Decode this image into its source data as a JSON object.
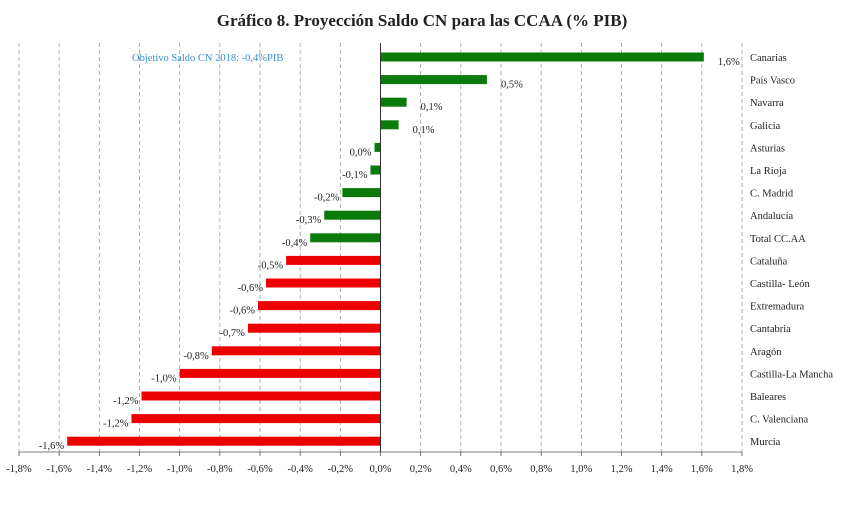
{
  "chart_data": {
    "type": "bar",
    "orientation": "horizontal",
    "title": "Gráfico 8. Proyección Saldo CN para las CCAA (% PIB)",
    "annotation": "Objetivo Saldo CN 2018: -0,4%PIB",
    "categories": [
      "Canarias",
      "País Vasco",
      "Navarra",
      "Galicia",
      "Asturias",
      "La Rioja",
      "C. Madrid",
      "Andalucía",
      "Total CC.AA",
      "Cataluña",
      "Castilla- León",
      "Extremadura",
      "Cantabria",
      "Aragón",
      "Castilla-La Mancha",
      "Baleares",
      "C. Valenciana",
      "Murcia"
    ],
    "values": [
      1.61,
      0.53,
      0.13,
      0.09,
      -0.03,
      -0.05,
      -0.19,
      -0.28,
      -0.35,
      -0.47,
      -0.57,
      -0.61,
      -0.66,
      -0.84,
      -1.0,
      -1.19,
      -1.24,
      -1.56
    ],
    "value_labels": [
      "1,6%",
      "0,5%",
      "0,1%",
      "0,1%",
      "0,0%",
      "-0,1%",
      "-0,2%",
      "-0,3%",
      "-0,4%",
      "-0,5%",
      "-0,6%",
      "-0,6%",
      "-0,7%",
      "-0,8%",
      "-1,0%",
      "-1,2%",
      "-1,2%",
      "-1,6%"
    ],
    "xlim": [
      -1.8,
      1.8
    ],
    "xticks": [
      -1.8,
      -1.6,
      -1.4,
      -1.2,
      -1.0,
      -0.8,
      -0.6,
      -0.4,
      -0.2,
      0,
      0.2,
      0.4,
      0.6,
      0.8,
      1.0,
      1.2,
      1.4,
      1.6,
      1.8
    ],
    "xtick_labels": [
      "-1,8%",
      "-1,6%",
      "-1,4%",
      "-1,2%",
      "-1,0%",
      "-0,8%",
      "-0,6%",
      "-0,4%",
      "-0,2%",
      "0,0%",
      "0,2%",
      "0,4%",
      "0,6%",
      "0,8%",
      "1,0%",
      "1,2%",
      "1,4%",
      "1,6%",
      "1,8%"
    ],
    "grid": "vertical dashed",
    "legend": "none",
    "colors": {
      "better_than_target": "#0a7a0a",
      "worse_than_target": "#ee0000",
      "grid": "#9a9a9a",
      "annotation": "#3b8fcf"
    },
    "bar_colors": [
      "green",
      "green",
      "green",
      "green",
      "green",
      "green",
      "green",
      "green",
      "green",
      "red",
      "red",
      "red",
      "red",
      "red",
      "red",
      "red",
      "red",
      "red"
    ]
  }
}
